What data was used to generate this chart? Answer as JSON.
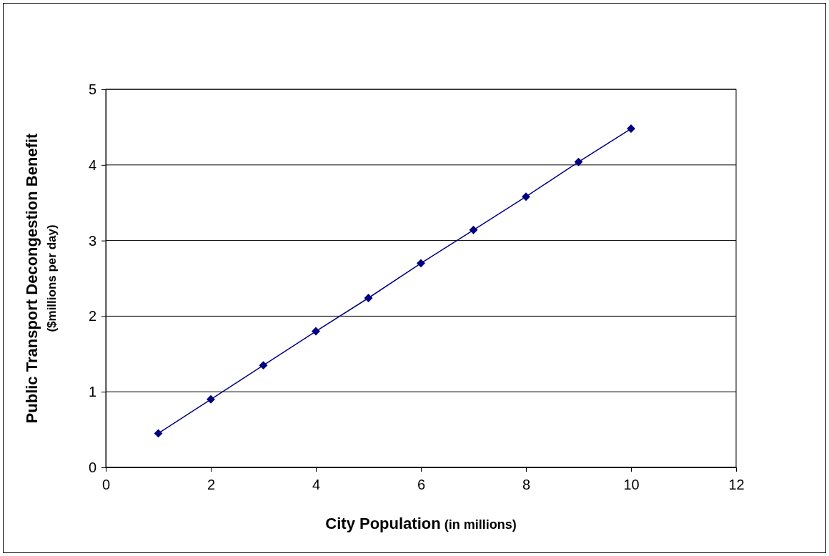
{
  "chart_data": {
    "type": "line",
    "xlabel": "City Population (in millions)",
    "ylabel": "Public Transport Decongestion Benefit ($millions per day)",
    "x": [
      1,
      2,
      3,
      4,
      5,
      6,
      7,
      8,
      9,
      10
    ],
    "series": [
      {
        "color": "#000080",
        "values": [
          0.45,
          0.9,
          1.35,
          1.8,
          2.24,
          2.7,
          3.14,
          3.58,
          4.04,
          4.48
        ]
      }
    ],
    "xlim": [
      0,
      12
    ],
    "xticks": [
      0,
      2,
      4,
      6,
      8,
      10,
      12
    ],
    "ylim": [
      0,
      5
    ],
    "yticks": [
      0,
      1,
      2,
      3,
      4,
      5
    ],
    "grid": "y",
    "marker": "diamond",
    "line_style": "solid"
  }
}
